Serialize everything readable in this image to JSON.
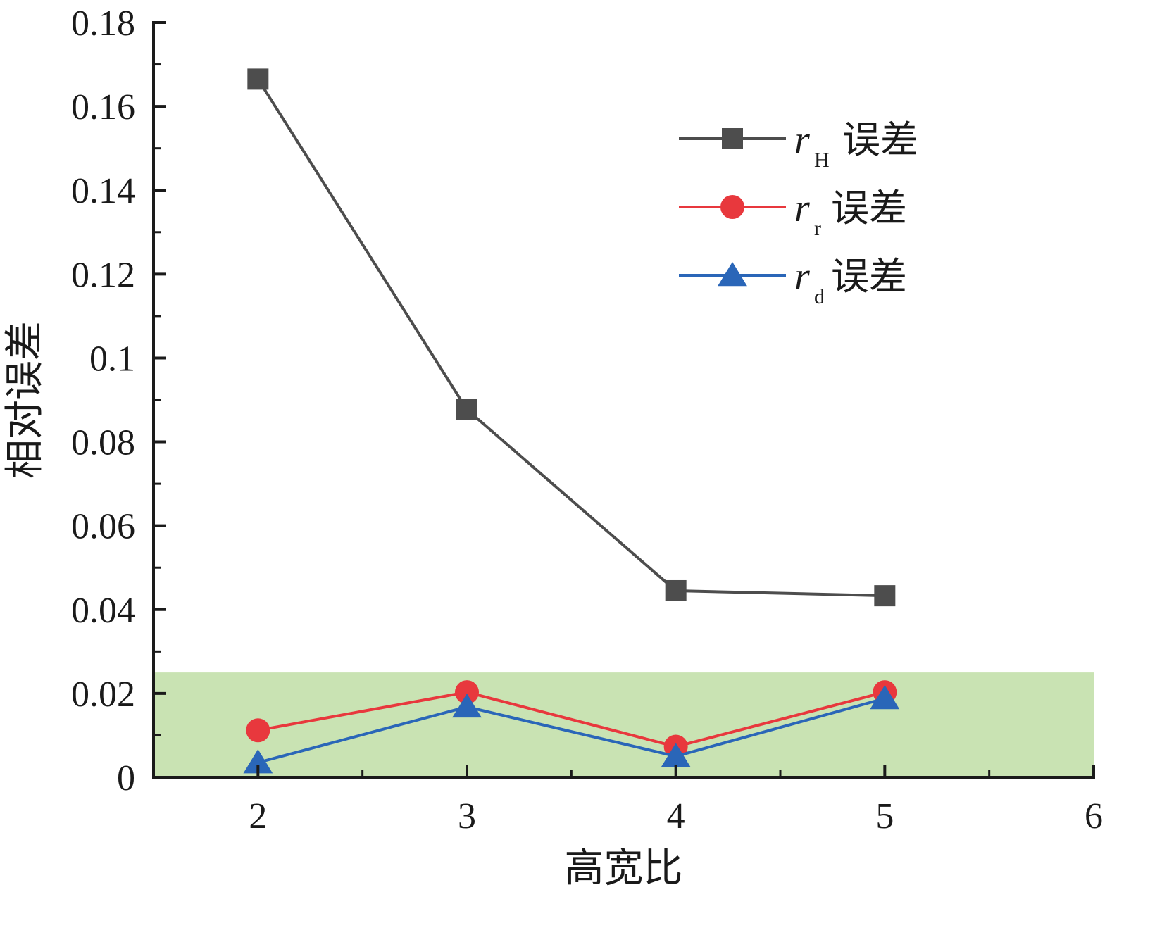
{
  "chart_data": {
    "type": "line",
    "xlabel": "高宽比",
    "ylabel": "相对误差",
    "xlim": [
      1.5,
      6
    ],
    "ylim": [
      0,
      0.18
    ],
    "x_ticks": [
      2,
      3,
      4,
      5,
      6
    ],
    "x_tick_labels": [
      "2",
      "3",
      "4",
      "5",
      "6"
    ],
    "y_ticks": [
      0,
      0.02,
      0.04,
      0.06,
      0.08,
      0.1,
      0.12,
      0.14,
      0.16,
      0.18
    ],
    "y_tick_labels": [
      "0",
      "0.02",
      "0.04",
      "0.06",
      "0.08",
      "0.1",
      "0.12",
      "0.14",
      "0.16",
      "0.18"
    ],
    "grid": false,
    "legend_position": "top-right",
    "x": [
      2,
      3,
      4,
      5
    ],
    "highlight_band": {
      "y_from": 0,
      "y_to": 0.025,
      "color": "#c9e3b3"
    },
    "series": [
      {
        "name_main": "r",
        "name_sub": "H",
        "name_suffix": "误差",
        "marker": "square",
        "color": "#4d4d4d",
        "values": [
          0.1665,
          0.0877,
          0.0445,
          0.0433
        ]
      },
      {
        "name_main": "r",
        "name_sub": "r",
        "name_suffix": "误差",
        "marker": "circle",
        "color": "#e8383d",
        "values": [
          0.0112,
          0.0203,
          0.0073,
          0.0203
        ]
      },
      {
        "name_main": "r",
        "name_sub": "d",
        "name_suffix": "误差",
        "marker": "triangle",
        "color": "#2a66b8",
        "values": [
          0.0035,
          0.0168,
          0.005,
          0.0188
        ]
      }
    ]
  }
}
